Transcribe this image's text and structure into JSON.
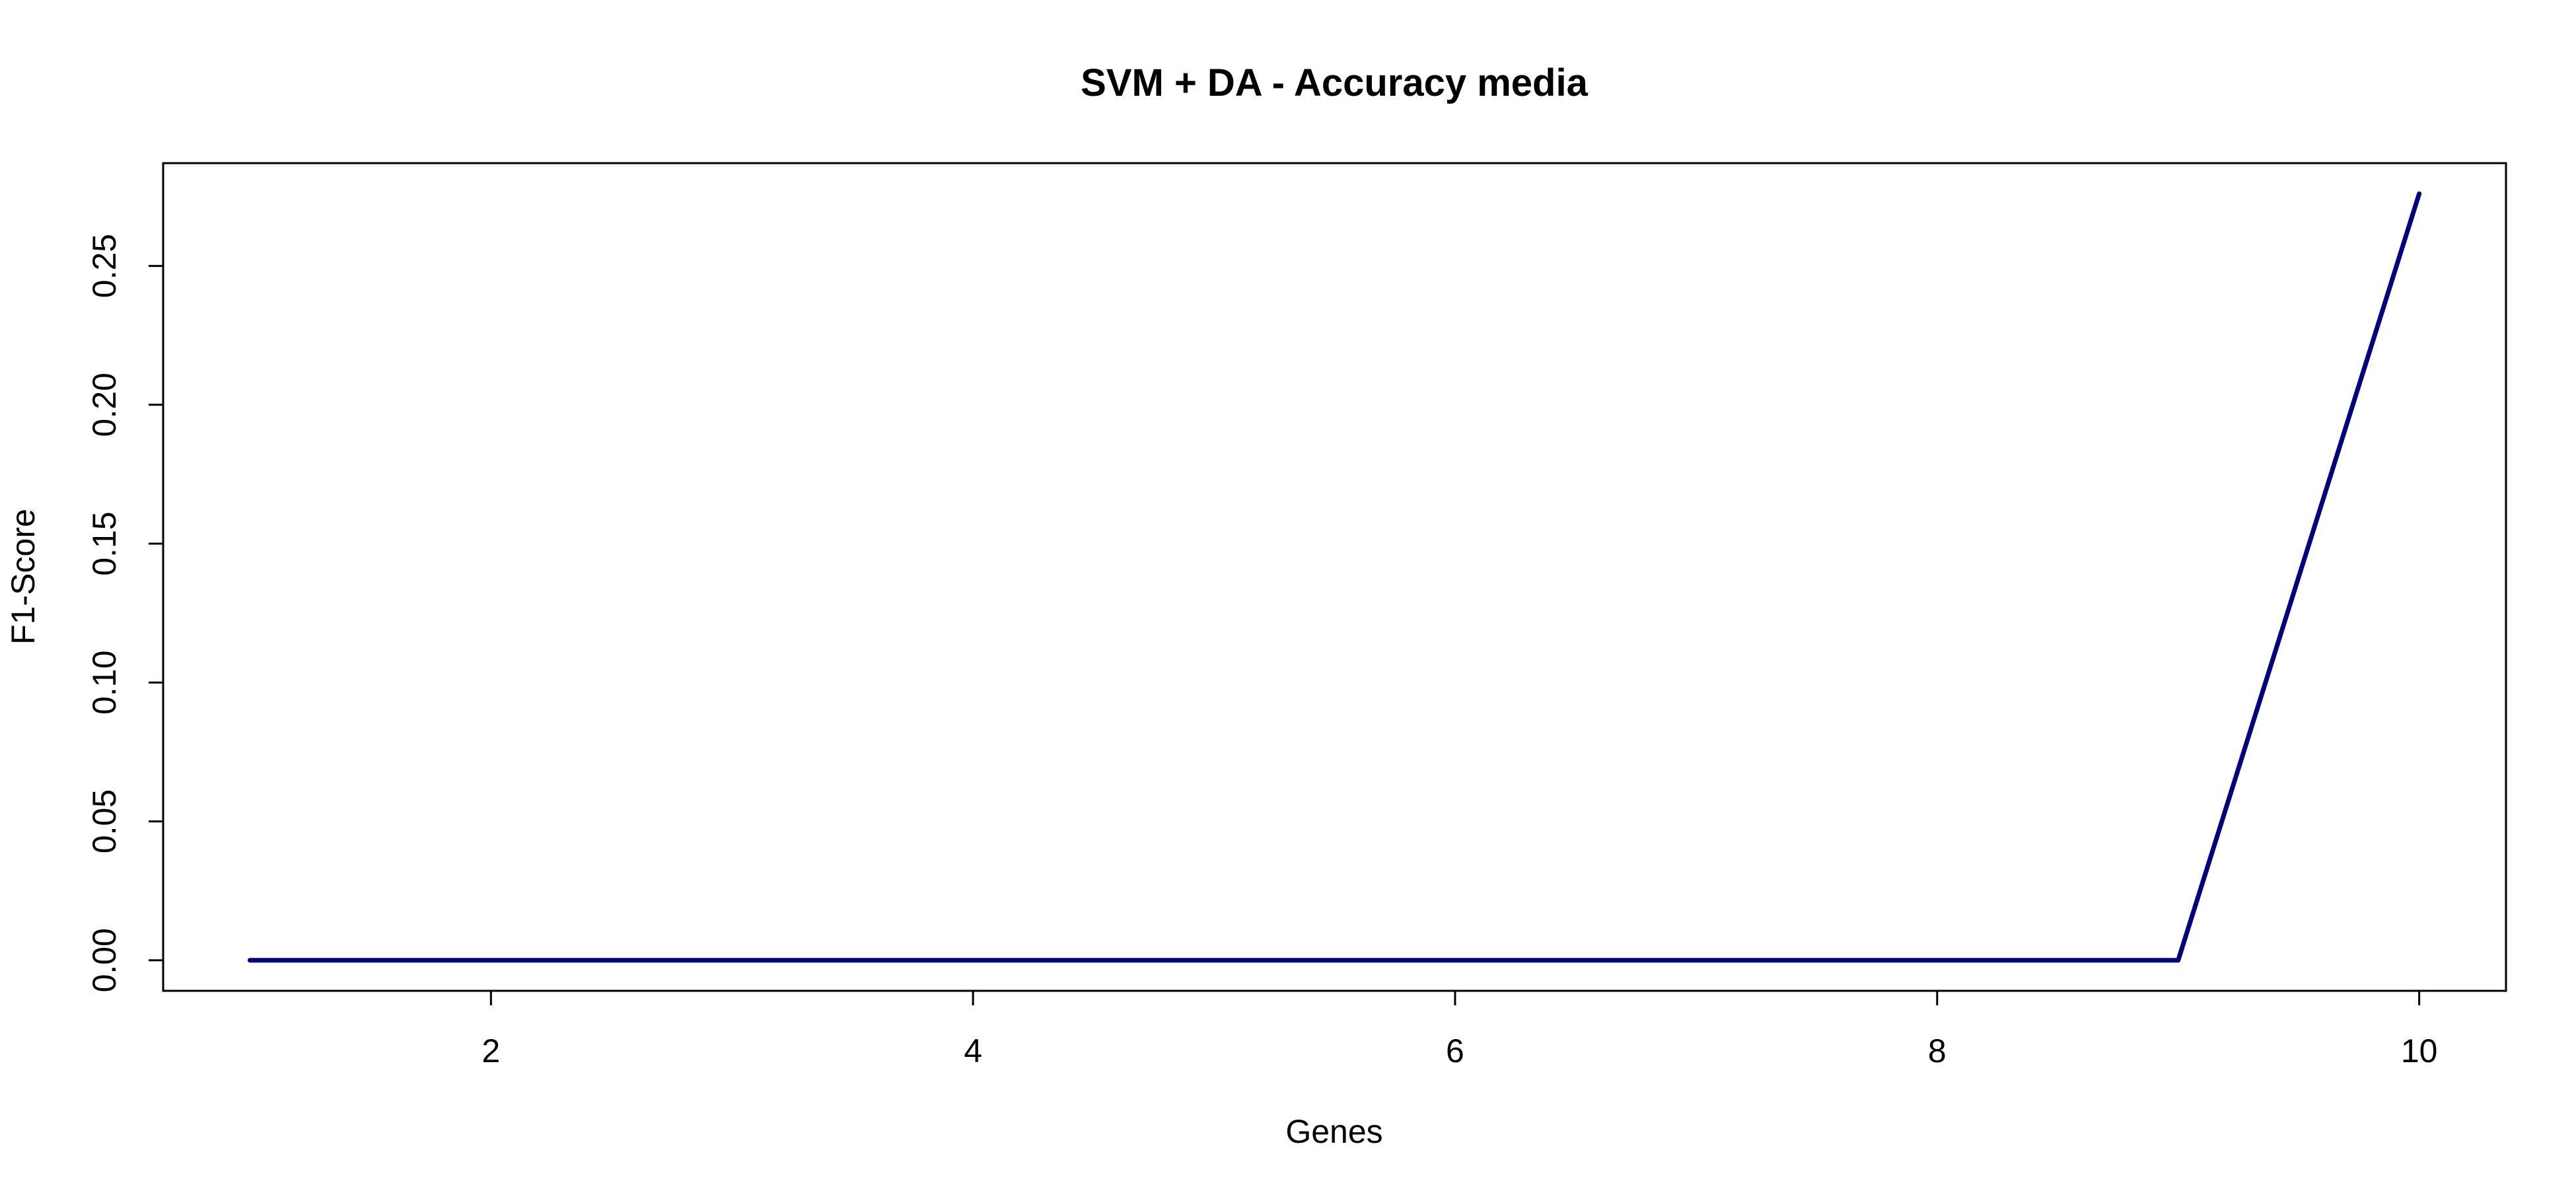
{
  "chart_data": {
    "type": "line",
    "title": "SVM + DA - Accuracy media",
    "xlabel": "Genes",
    "ylabel": "F1-Score",
    "x": [
      1,
      2,
      3,
      4,
      5,
      6,
      7,
      8,
      9,
      10
    ],
    "series": [
      {
        "values": [
          0,
          0,
          0,
          0,
          0,
          0,
          0,
          0,
          0,
          0.276
        ]
      }
    ],
    "xlim": [
      0.64,
      10.36
    ],
    "ylim": [
      -0.011,
      0.287
    ],
    "xticks": [
      2,
      4,
      6,
      8,
      10
    ],
    "xtick_labels": [
      "2",
      "4",
      "6",
      "8",
      "10"
    ],
    "yticks": [
      0,
      0.05,
      0.1,
      0.15,
      0.2,
      0.25
    ],
    "ytick_labels": [
      "0.00",
      "0.05",
      "0.10",
      "0.15",
      "0.20",
      "0.25"
    ],
    "grid": false,
    "legend": "none",
    "line_color": "#000080"
  }
}
